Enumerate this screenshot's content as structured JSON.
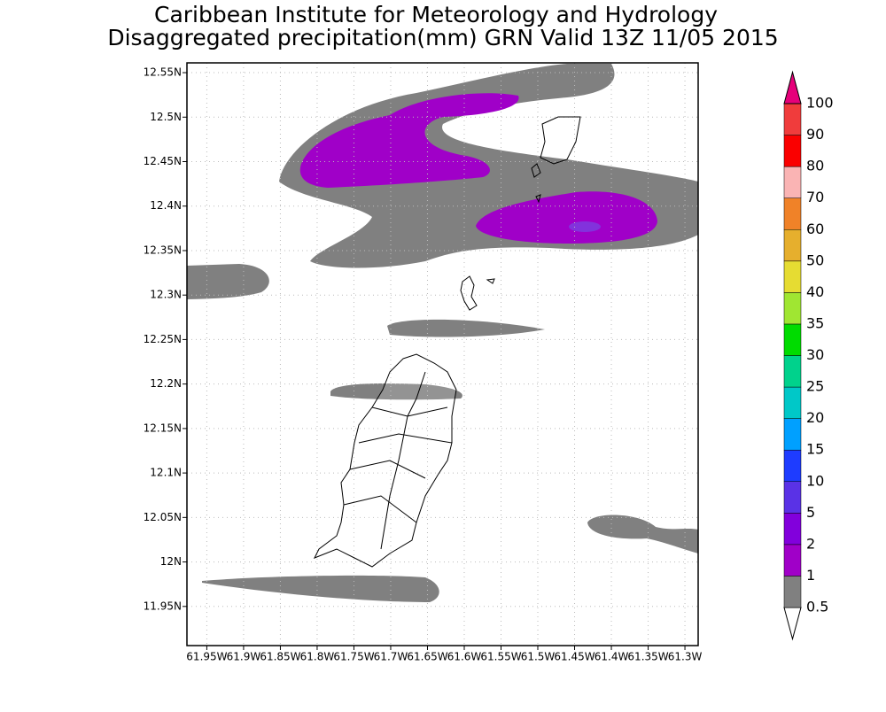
{
  "chart_data": {
    "type": "map",
    "title": "Caribbean Institute for Meteorology and Hydrology",
    "subtitle": "Disaggregated precipitation(mm) GRN Valid 13Z 11/05 2015",
    "xlim": [
      -61.977,
      -61.282
    ],
    "ylim": [
      11.906,
      12.561
    ],
    "xticks": [
      {
        "value": -61.95,
        "label": "61.95W"
      },
      {
        "value": -61.9,
        "label": "61.9W"
      },
      {
        "value": -61.85,
        "label": "61.85W"
      },
      {
        "value": -61.8,
        "label": "61.8W"
      },
      {
        "value": -61.75,
        "label": "61.75W"
      },
      {
        "value": -61.7,
        "label": "61.7W"
      },
      {
        "value": -61.65,
        "label": "61.65W"
      },
      {
        "value": -61.6,
        "label": "61.6W"
      },
      {
        "value": -61.55,
        "label": "61.55W"
      },
      {
        "value": -61.5,
        "label": "61.5W"
      },
      {
        "value": -61.45,
        "label": "61.45W"
      },
      {
        "value": -61.4,
        "label": "61.4W"
      },
      {
        "value": -61.35,
        "label": "61.35W"
      },
      {
        "value": -61.3,
        "label": "61.3W"
      }
    ],
    "yticks": [
      {
        "value": 12.55,
        "label": "12.55N"
      },
      {
        "value": 12.5,
        "label": "12.5N"
      },
      {
        "value": 12.45,
        "label": "12.45N"
      },
      {
        "value": 12.4,
        "label": "12.4N"
      },
      {
        "value": 12.35,
        "label": "12.35N"
      },
      {
        "value": 12.3,
        "label": "12.3N"
      },
      {
        "value": 12.25,
        "label": "12.25N"
      },
      {
        "value": 12.2,
        "label": "12.2N"
      },
      {
        "value": 12.15,
        "label": "12.15N"
      },
      {
        "value": 12.1,
        "label": "12.1N"
      },
      {
        "value": 12.05,
        "label": "12.05N"
      },
      {
        "value": 12,
        "label": "12N"
      },
      {
        "value": 11.95,
        "label": "11.95N"
      }
    ],
    "grid": true,
    "colorbar": {
      "levels": [
        0.5,
        1,
        2,
        5,
        10,
        15,
        20,
        25,
        30,
        35,
        40,
        50,
        60,
        70,
        80,
        90,
        100
      ],
      "colors": [
        "#ffffff",
        "#808080",
        "#a000c8",
        "#8200dc",
        "#5a32e6",
        "#1e3cff",
        "#00a0ff",
        "#00c8c8",
        "#00d28c",
        "#00dc00",
        "#a0e632",
        "#e6dc32",
        "#e6af2d",
        "#f08228",
        "#fab4b4",
        "#fa0000",
        "#f03c3c",
        "#e6007a"
      ]
    }
  }
}
